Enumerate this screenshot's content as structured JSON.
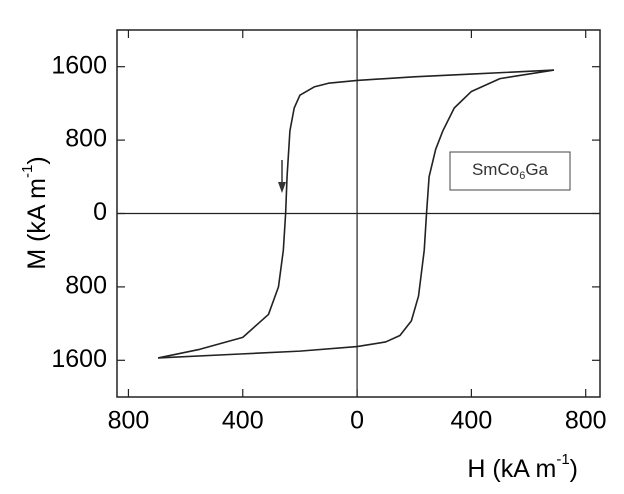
{
  "chart_data": {
    "type": "line",
    "xlabel": [
      "H (kA m",
      "-1",
      ")"
    ],
    "ylabel": [
      "M (kA m",
      "-1",
      ")"
    ],
    "annotation": [
      "SmCo",
      "6",
      "Ga"
    ],
    "xlim": [
      -840,
      850
    ],
    "ylim": [
      -2000,
      2000
    ],
    "xticks": [
      {
        "value": -800,
        "label": "800"
      },
      {
        "value": -400,
        "label": "400"
      },
      0,
      400,
      800
    ],
    "yticks": [
      {
        "value": -1600,
        "label": "1600"
      },
      {
        "value": -800,
        "label": "800"
      },
      0,
      800,
      1600
    ],
    "zero_lines": true,
    "series": [
      {
        "color": "#222222",
        "x": [
          689,
          400,
          200,
          0,
          -100,
          -150,
          -200,
          -220,
          -235,
          -245,
          -250,
          -258,
          -275,
          -310,
          -400,
          -550,
          -696
        ],
        "values": [
          1563,
          1520,
          1490,
          1450,
          1420,
          1380,
          1290,
          1150,
          900,
          400,
          0,
          -400,
          -800,
          -1100,
          -1350,
          -1480,
          -1574
        ]
      },
      {
        "color": "#222222",
        "x": [
          -696,
          -400,
          -200,
          0,
          100,
          150,
          190,
          215,
          235,
          243,
          252,
          275,
          300,
          340,
          400,
          500,
          689
        ],
        "values": [
          -1574,
          -1530,
          -1500,
          -1450,
          -1400,
          -1330,
          -1170,
          -900,
          -400,
          0,
          400,
          700,
          900,
          1150,
          1330,
          1470,
          1563
        ]
      }
    ]
  }
}
